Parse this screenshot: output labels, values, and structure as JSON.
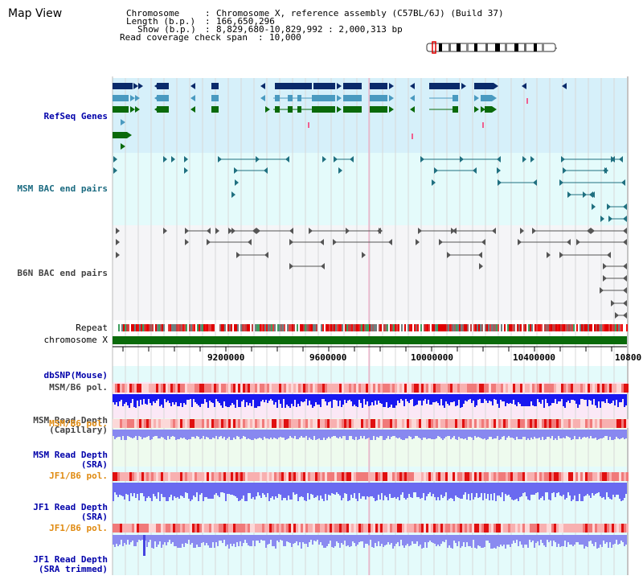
{
  "page_title": "Map View",
  "info": {
    "chromosome_key": "Chromosome",
    "chromosome_val": "Chromosome X, reference assembly (C57BL/6J) (Build 37)",
    "length_key": "Length (b.p.)",
    "length_val": "166,650,296",
    "show_key": "Show (b.p.)",
    "show_val": "8,829,680-10,829,992 : 2,000,313 bp",
    "coverage_key": "Read coverage check span",
    "coverage_val": "10,000"
  },
  "tracks": {
    "refseq": "RefSeq Genes",
    "msm_bac": "MSM BAC end pairs",
    "b6n_bac": "B6N BAC end pairs",
    "repeat": "Repeat",
    "chromosome": "chromosome X",
    "dbsnp": "dbSNP(Mouse)",
    "msm_b6_pol_1": "MSM/B6 pol.",
    "msm_depth_cap_1": "MSM Read Depth",
    "msm_depth_cap_2": "(Capillary)",
    "msm_b6_pol_2": "MSM/B6 pol.",
    "msm_depth_sra_1": "MSM Read Depth",
    "msm_depth_sra_2": "(SRA)",
    "jf1_b6_pol_1": "JF1/B6 pol.",
    "jf1_depth_sra_1": "JF1 Read Depth",
    "jf1_depth_sra_2": "(SRA)",
    "jf1_b6_pol_2": "JF1/B6 pol.",
    "jf1_depth_trim_1": "JF1 Read Depth",
    "jf1_depth_trim_2": "(SRA trimmed)"
  },
  "scale": {
    "ticks": [
      "9200000",
      "9600000",
      "10000000",
      "10400000",
      "10800"
    ]
  },
  "colors": {
    "refseq_bg": "#d6f0fa",
    "msm_bac_bg": "#e4fbfb",
    "b6n_bac_bg": "#f5f5f7",
    "gene_navy": "#0a2a6a",
    "gene_blue": "#4a9ac0",
    "gene_green": "#0a6a0a",
    "bac_teal": "#207080",
    "bac_gray": "#555555",
    "chrom_green": "#0a6a0a",
    "label_blue": "#0000aa",
    "label_teal": "#1a6a80",
    "label_orange": "#e08a10",
    "label_gray": "#444444"
  }
}
